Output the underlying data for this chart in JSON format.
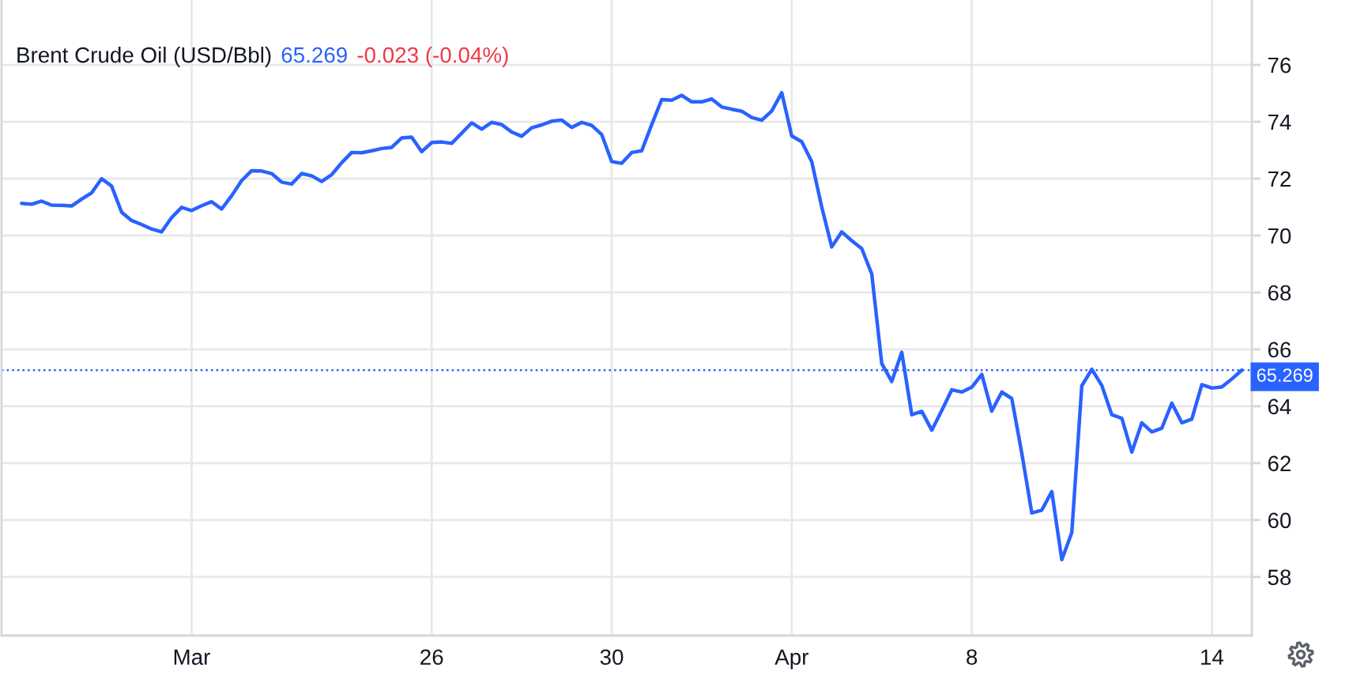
{
  "chart_data": {
    "type": "line",
    "title": "Brent Crude Oil (USD/Bbl)",
    "annotations": [
      "65.269",
      "-0.023 (-0.04%)"
    ],
    "categories": [
      null,
      null,
      null,
      null,
      null,
      null,
      null,
      null,
      null,
      null,
      null,
      null,
      null,
      null,
      null,
      null,
      null,
      null,
      null,
      "Mar",
      null,
      null,
      null,
      null,
      null,
      null,
      null,
      null,
      null,
      null,
      null,
      null,
      null,
      null,
      null,
      null,
      null,
      null,
      null,
      null,
      null,
      null,
      null,
      "26",
      null,
      null,
      null,
      null,
      null,
      null,
      null,
      null,
      null,
      null,
      null,
      null,
      null,
      null,
      null,
      null,
      null,
      "30",
      null,
      null,
      null,
      null,
      null,
      null,
      null,
      null,
      null,
      null,
      null,
      null,
      null,
      null,
      null,
      null,
      null,
      "Apr",
      null,
      null,
      null,
      null,
      null,
      null,
      null,
      null,
      null,
      null,
      null,
      null,
      null,
      null,
      null,
      null,
      null,
      "8",
      null,
      null,
      null,
      null,
      null,
      null,
      null,
      null,
      null,
      null,
      null,
      null,
      null,
      null,
      null,
      null,
      null,
      null,
      null,
      null,
      null,
      null,
      null,
      "14",
      null,
      null,
      null
    ],
    "series": [
      {
        "color": "#2962ff",
        "values": [
          null,
          null,
          71.13,
          71.1,
          71.21,
          71.07,
          71.06,
          71.04,
          71.28,
          71.5,
          72.0,
          71.74,
          70.82,
          70.53,
          70.39,
          70.23,
          70.13,
          70.63,
          70.99,
          70.88,
          71.05,
          71.19,
          70.93,
          71.4,
          71.93,
          72.28,
          72.27,
          72.18,
          71.88,
          71.81,
          72.18,
          72.1,
          71.9,
          72.14,
          72.56,
          72.92,
          72.91,
          72.98,
          73.06,
          73.1,
          73.43,
          73.46,
          72.95,
          73.27,
          73.29,
          73.24,
          73.6,
          73.96,
          73.74,
          73.98,
          73.9,
          73.64,
          73.49,
          73.79,
          73.89,
          74.02,
          74.06,
          73.8,
          73.98,
          73.87,
          73.55,
          72.6,
          72.54,
          72.92,
          72.98,
          73.9,
          74.78,
          74.76,
          74.93,
          74.7,
          74.7,
          74.8,
          74.52,
          74.44,
          74.37,
          74.15,
          74.05,
          74.38,
          75.02,
          73.5,
          73.3,
          72.6,
          71.0,
          69.6,
          70.13,
          69.82,
          69.54,
          68.65,
          65.5,
          64.87,
          65.9,
          63.7,
          63.82,
          63.16,
          63.85,
          64.58,
          64.5,
          64.67,
          65.12,
          63.83,
          64.5,
          64.27,
          62.35,
          60.25,
          60.35,
          61.0,
          58.61,
          59.56,
          64.72,
          65.3,
          64.73,
          63.7,
          63.58,
          62.39,
          63.42,
          63.1,
          63.23,
          64.11,
          63.42,
          63.55,
          64.76,
          64.64,
          64.68,
          64.96,
          65.27
        ]
      }
    ],
    "ylim": [
      55.94,
      78.28
    ],
    "yticks": [
      58,
      60,
      62,
      64,
      66,
      68,
      70,
      72,
      74,
      76
    ],
    "grid": true,
    "line_style": "solid",
    "ref_lines": [
      {
        "axis": "y",
        "value": 65.269,
        "label": "65.269",
        "color": "#2962ff",
        "line_style": "dotted"
      }
    ]
  }
}
